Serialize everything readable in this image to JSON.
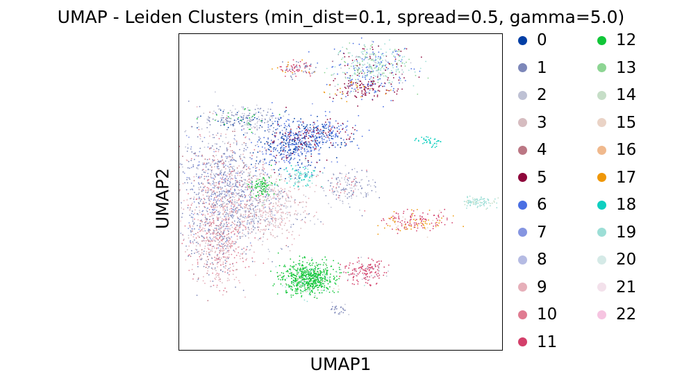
{
  "chart_data": {
    "type": "scatter",
    "title": "UMAP - Leiden Clusters (min_dist=0.1, spread=0.5, gamma=5.0)",
    "xlabel": "UMAP1",
    "ylabel": "UMAP2",
    "xticks": [],
    "yticks": [],
    "legend_position": "right, outside plot, two columns",
    "clusters": [
      {
        "label": "0",
        "color": "#023fa5"
      },
      {
        "label": "1",
        "color": "#7d87b9"
      },
      {
        "label": "2",
        "color": "#bec1d4"
      },
      {
        "label": "3",
        "color": "#d6bcc0"
      },
      {
        "label": "4",
        "color": "#bb7784"
      },
      {
        "label": "5",
        "color": "#8e063b"
      },
      {
        "label": "6",
        "color": "#4a6fe3"
      },
      {
        "label": "7",
        "color": "#8595e1"
      },
      {
        "label": "8",
        "color": "#b5bbe3"
      },
      {
        "label": "9",
        "color": "#e6afb9"
      },
      {
        "label": "10",
        "color": "#e07b91"
      },
      {
        "label": "11",
        "color": "#d33f6a"
      },
      {
        "label": "12",
        "color": "#11c638"
      },
      {
        "label": "13",
        "color": "#8dd593"
      },
      {
        "label": "14",
        "color": "#c6dec7"
      },
      {
        "label": "15",
        "color": "#ead3c6"
      },
      {
        "label": "16",
        "color": "#f0b98d"
      },
      {
        "label": "17",
        "color": "#ef9708"
      },
      {
        "label": "18",
        "color": "#0fcfc0"
      },
      {
        "label": "19",
        "color": "#9cded6"
      },
      {
        "label": "20",
        "color": "#d5eae7"
      },
      {
        "label": "21",
        "color": "#f3e1eb"
      },
      {
        "label": "22",
        "color": "#f6c4e1"
      }
    ],
    "point_groups": [
      {
        "region": "upper-right island",
        "x": 0.6,
        "y": 0.9,
        "sx": 0.06,
        "sy": 0.035,
        "n": 420,
        "mix": [
          {
            "c": "19",
            "w": 3
          },
          {
            "c": "13",
            "w": 2
          },
          {
            "c": "6",
            "w": 2
          },
          {
            "c": "5",
            "w": 1
          },
          {
            "c": "2",
            "w": 1
          }
        ]
      },
      {
        "region": "upper-right island streak",
        "x": 0.56,
        "y": 0.83,
        "sx": 0.05,
        "sy": 0.02,
        "n": 160,
        "mix": [
          {
            "c": "5",
            "w": 4
          },
          {
            "c": "17",
            "w": 1
          },
          {
            "c": "6",
            "w": 1
          }
        ]
      },
      {
        "region": "small top island",
        "x": 0.36,
        "y": 0.89,
        "sx": 0.03,
        "sy": 0.012,
        "n": 90,
        "mix": [
          {
            "c": "11",
            "w": 2
          },
          {
            "c": "17",
            "w": 1
          },
          {
            "c": "1",
            "w": 1
          }
        ]
      },
      {
        "region": "upper-left arc",
        "x": 0.19,
        "y": 0.73,
        "sx": 0.06,
        "sy": 0.02,
        "n": 220,
        "mix": [
          {
            "c": "2",
            "w": 3
          },
          {
            "c": "1",
            "w": 2
          },
          {
            "c": "12",
            "w": 1
          },
          {
            "c": "0",
            "w": 1
          }
        ]
      },
      {
        "region": "central blue cluster",
        "x": 0.35,
        "y": 0.65,
        "sx": 0.05,
        "sy": 0.04,
        "n": 520,
        "mix": [
          {
            "c": "0",
            "w": 3
          },
          {
            "c": "6",
            "w": 3
          },
          {
            "c": "7",
            "w": 2
          },
          {
            "c": "5",
            "w": 1
          }
        ]
      },
      {
        "region": "central upper tail",
        "x": 0.46,
        "y": 0.69,
        "sx": 0.05,
        "sy": 0.025,
        "n": 200,
        "mix": [
          {
            "c": "6",
            "w": 3
          },
          {
            "c": "5",
            "w": 2
          },
          {
            "c": "0",
            "w": 1
          }
        ]
      },
      {
        "region": "left main mass",
        "x": 0.14,
        "y": 0.52,
        "sx": 0.07,
        "sy": 0.09,
        "n": 1100,
        "mix": [
          {
            "c": "1",
            "w": 4
          },
          {
            "c": "2",
            "w": 2
          },
          {
            "c": "7",
            "w": 2
          },
          {
            "c": "10",
            "w": 1
          },
          {
            "c": "9",
            "w": 1
          },
          {
            "c": "4",
            "w": 1
          }
        ]
      },
      {
        "region": "left lower lobe",
        "x": 0.12,
        "y": 0.35,
        "sx": 0.05,
        "sy": 0.07,
        "n": 600,
        "mix": [
          {
            "c": "9",
            "w": 3
          },
          {
            "c": "10",
            "w": 2
          },
          {
            "c": "1",
            "w": 2
          },
          {
            "c": "3",
            "w": 1
          },
          {
            "c": "4",
            "w": 1
          }
        ]
      },
      {
        "region": "center pink streaks",
        "x": 0.28,
        "y": 0.45,
        "sx": 0.06,
        "sy": 0.06,
        "n": 500,
        "mix": [
          {
            "c": "9",
            "w": 3
          },
          {
            "c": "2",
            "w": 2
          },
          {
            "c": "3",
            "w": 2
          },
          {
            "c": "1",
            "w": 1
          }
        ]
      },
      {
        "region": "green patch left",
        "x": 0.26,
        "y": 0.52,
        "sx": 0.02,
        "sy": 0.02,
        "n": 90,
        "mix": [
          {
            "c": "12",
            "w": 3
          },
          {
            "c": "13",
            "w": 1
          }
        ]
      },
      {
        "region": "teal patch center",
        "x": 0.38,
        "y": 0.55,
        "sx": 0.025,
        "sy": 0.015,
        "n": 90,
        "mix": [
          {
            "c": "18",
            "w": 2
          },
          {
            "c": "19",
            "w": 2
          }
        ]
      },
      {
        "region": "right center branch",
        "x": 0.52,
        "y": 0.52,
        "sx": 0.04,
        "sy": 0.03,
        "n": 150,
        "mix": [
          {
            "c": "1",
            "w": 2
          },
          {
            "c": "2",
            "w": 2
          },
          {
            "c": "10",
            "w": 1
          }
        ]
      },
      {
        "region": "bottom green blob",
        "x": 0.4,
        "y": 0.23,
        "sx": 0.04,
        "sy": 0.025,
        "n": 700,
        "mix": [
          {
            "c": "12",
            "w": 8
          },
          {
            "c": "19",
            "w": 1
          },
          {
            "c": "15",
            "w": 1
          }
        ]
      },
      {
        "region": "bottom red blob",
        "x": 0.57,
        "y": 0.25,
        "sx": 0.035,
        "sy": 0.018,
        "n": 160,
        "mix": [
          {
            "c": "11",
            "w": 4
          },
          {
            "c": "2",
            "w": 1
          }
        ]
      },
      {
        "region": "right branch",
        "x": 0.73,
        "y": 0.41,
        "sx": 0.05,
        "sy": 0.02,
        "n": 170,
        "mix": [
          {
            "c": "11",
            "w": 3
          },
          {
            "c": "17",
            "w": 2
          },
          {
            "c": "15",
            "w": 1
          }
        ]
      },
      {
        "region": "far-right teal",
        "x": 0.92,
        "y": 0.47,
        "sx": 0.025,
        "sy": 0.01,
        "n": 90,
        "mix": [
          {
            "c": "19",
            "w": 3
          },
          {
            "c": "14",
            "w": 1
          }
        ]
      },
      {
        "region": "small teal streak",
        "x": 0.77,
        "y": 0.66,
        "sx": 0.02,
        "sy": 0.008,
        "n": 40,
        "mix": [
          {
            "c": "18",
            "w": 3
          }
        ]
      },
      {
        "region": "tiny bottom cluster",
        "x": 0.49,
        "y": 0.13,
        "sx": 0.015,
        "sy": 0.008,
        "n": 30,
        "mix": [
          {
            "c": "1",
            "w": 2
          },
          {
            "c": "2",
            "w": 1
          }
        ]
      }
    ]
  }
}
